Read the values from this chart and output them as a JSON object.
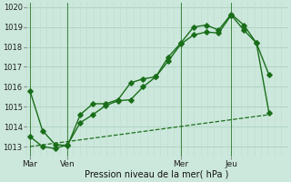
{
  "background_color": "#cce8dc",
  "grid_color_h": "#aacfbf",
  "grid_color_v": "#c0ddd0",
  "line_color": "#1a6e1a",
  "title": "Pression niveau de la mer( hPa )",
  "ylim": [
    1012.5,
    1020.2
  ],
  "yticks": [
    1013,
    1014,
    1015,
    1016,
    1017,
    1018,
    1019,
    1020
  ],
  "xtick_labels": [
    "Mar",
    "Ven",
    "Mer",
    "Jeu"
  ],
  "xtick_positions": [
    0,
    3,
    12,
    16
  ],
  "vline_positions": [
    0,
    3,
    12,
    16
  ],
  "xlim": [
    -0.3,
    20.5
  ],
  "series1_x": [
    0,
    1,
    2,
    3,
    4,
    5,
    6,
    7,
    8,
    9,
    10,
    11,
    12,
    13,
    14,
    15,
    16,
    17,
    18,
    19
  ],
  "series1_y": [
    1015.8,
    1013.8,
    1013.1,
    1013.05,
    1014.6,
    1015.15,
    1015.15,
    1015.35,
    1016.2,
    1016.4,
    1016.5,
    1017.5,
    1018.2,
    1019.0,
    1019.1,
    1018.85,
    1019.65,
    1019.1,
    1018.2,
    1016.6
  ],
  "series2_x": [
    0,
    1,
    2,
    3,
    4,
    5,
    6,
    7,
    8,
    9,
    10,
    11,
    12,
    13,
    14,
    15,
    16,
    17,
    18,
    19
  ],
  "series2_y": [
    1013.5,
    1013.0,
    1012.9,
    1013.1,
    1014.2,
    1014.6,
    1015.05,
    1015.3,
    1015.35,
    1016.0,
    1016.5,
    1017.3,
    1018.15,
    1018.6,
    1018.75,
    1018.7,
    1019.6,
    1018.85,
    1018.2,
    1014.7
  ],
  "series3_x": [
    0,
    19
  ],
  "series3_y": [
    1013.0,
    1014.6
  ],
  "n_vgrid": 40
}
